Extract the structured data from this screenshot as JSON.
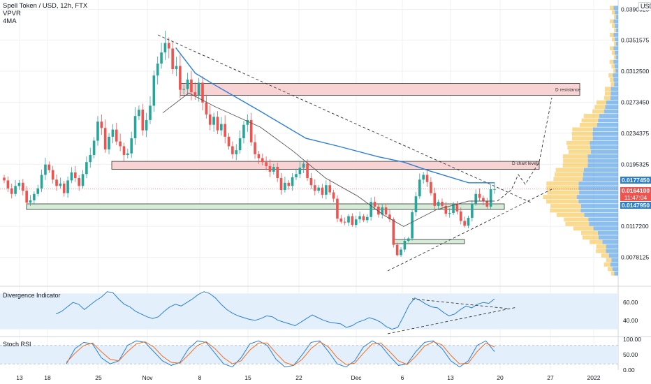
{
  "header": {
    "title": "Spell Token / USD, 12h, FTX",
    "indicator1": "VPVR",
    "indicator2": "4MA",
    "currency_button": "USD"
  },
  "colors": {
    "bull": "#26a69a",
    "bear": "#ef5350",
    "ma_fast": "#2a7fd4",
    "ma_slow": "#555555",
    "ma_mid": "#9e9e9e",
    "zone_fill": "#f7d3d3",
    "support_fill": "#d6ecd8",
    "vp_up": "#f6c142",
    "vp_down": "#2d8ae0",
    "rsi_line": "#2a7fd4",
    "stoch_k": "#2a7fd4",
    "stoch_d": "#f06c1f",
    "price_tag_red": "#ef5350",
    "price_tag_blue": "#2a7fd4"
  },
  "price_tags": {
    "ma_value": "0.0177450",
    "last_price": "0.0164100",
    "countdown": "11:47:04",
    "support_value": "0.0147950"
  },
  "annotations": {
    "resistance_label": "D resistance",
    "chart_levels_label": "D chart levels"
  },
  "panes": {
    "divergence_title": "Divergence Indicator",
    "stoch_title": "Stoch RSI"
  },
  "chart_data": [
    {
      "type": "candlestick",
      "title": "Spell Token / USD, 12h, FTX",
      "y_axis": {
        "ticks": [
          "0.0390025",
          "0.0351575",
          "0.0312500",
          "0.0273450",
          "0.0234375",
          "0.0195325",
          "0.0117200",
          "0.0078125"
        ],
        "range": [
          0.0055,
          0.0395
        ]
      },
      "x_axis": {
        "ticks": [
          "13",
          "18",
          "25",
          "Nov",
          "8",
          "15",
          "22",
          "Dec",
          "6",
          "13",
          "20",
          "27",
          "2022"
        ]
      },
      "levels": {
        "ma_value": 0.017745,
        "last_price": 0.01641,
        "support": 0.014795,
        "resistance_zone": [
          0.0282,
          0.0297
        ],
        "chart_levels_zone": [
          0.0189,
          0.0199
        ]
      },
      "candles_close": [
        0.0175,
        0.0165,
        0.0158,
        0.0168,
        0.0172,
        0.0162,
        0.0147,
        0.015,
        0.0158,
        0.0165,
        0.0182,
        0.0195,
        0.0188,
        0.0176,
        0.0168,
        0.0171,
        0.0159,
        0.0175,
        0.0185,
        0.0178,
        0.0168,
        0.0183,
        0.0198,
        0.0207,
        0.0225,
        0.0249,
        0.0241,
        0.0214,
        0.023,
        0.0239,
        0.0224,
        0.0218,
        0.0207,
        0.0209,
        0.0228,
        0.0256,
        0.0264,
        0.0238,
        0.0251,
        0.0269,
        0.0307,
        0.0322,
        0.0336,
        0.0348,
        0.0341,
        0.0315,
        0.0319,
        0.0289,
        0.029,
        0.0302,
        0.0286,
        0.0282,
        0.0298,
        0.0273,
        0.0258,
        0.0245,
        0.0255,
        0.0238,
        0.0246,
        0.023,
        0.0218,
        0.0208,
        0.0213,
        0.0228,
        0.0245,
        0.0251,
        0.0223,
        0.0208,
        0.0203,
        0.0198,
        0.0193,
        0.0186,
        0.0192,
        0.0178,
        0.0163,
        0.0172,
        0.0168,
        0.0179,
        0.0183,
        0.0191,
        0.0196,
        0.0178,
        0.0169,
        0.0162,
        0.0166,
        0.0157,
        0.0169,
        0.016,
        0.0152,
        0.0127,
        0.0123,
        0.0122,
        0.013,
        0.0119,
        0.0126,
        0.013,
        0.0125,
        0.0129,
        0.0148,
        0.0142,
        0.0132,
        0.0141,
        0.0132,
        0.0126,
        0.0094,
        0.0081,
        0.0088,
        0.0099,
        0.0102,
        0.0135,
        0.0155,
        0.0176,
        0.0182,
        0.0173,
        0.0159,
        0.0143,
        0.0148,
        0.0143,
        0.0133,
        0.0134,
        0.0145,
        0.0136,
        0.0124,
        0.0118,
        0.0128,
        0.0146,
        0.0158,
        0.0153,
        0.0149,
        0.0142,
        0.0164,
        0.01641
      ],
      "fast_ma_points": [
        [
          0.27,
          0.0342
        ],
        [
          0.3,
          0.031
        ],
        [
          0.33,
          0.0295
        ],
        [
          0.4,
          0.0262
        ],
        [
          0.47,
          0.0228
        ],
        [
          0.52,
          0.0218
        ],
        [
          0.58,
          0.0205
        ],
        [
          0.62,
          0.0198
        ],
        [
          0.66,
          0.0187
        ],
        [
          0.72,
          0.0172
        ],
        [
          0.76,
          0.0172
        ]
      ],
      "slow_ma_points": [
        [
          0.25,
          0.026
        ],
        [
          0.29,
          0.0285
        ],
        [
          0.33,
          0.0268
        ],
        [
          0.4,
          0.0242
        ],
        [
          0.45,
          0.0212
        ],
        [
          0.5,
          0.0178
        ],
        [
          0.55,
          0.0155
        ],
        [
          0.59,
          0.0131
        ],
        [
          0.62,
          0.0117
        ],
        [
          0.67,
          0.0138
        ],
        [
          0.72,
          0.0149
        ],
        [
          0.76,
          0.0149
        ]
      ],
      "volume_profile_levels": 60
    },
    {
      "type": "line",
      "title": "Divergence Indicator",
      "y_axis": {
        "ticks": [
          "60.00",
          "40.00"
        ],
        "range": [
          25,
          75
        ]
      },
      "series": [
        {
          "values": [
            47,
            50,
            55,
            60,
            58,
            52,
            57,
            62,
            66,
            72,
            71,
            64,
            58,
            55,
            50,
            47,
            44,
            42,
            44,
            50,
            55,
            58,
            56,
            60,
            64,
            69,
            72,
            70,
            65,
            58,
            52,
            48,
            45,
            43,
            41,
            40,
            42,
            45,
            44,
            40,
            38,
            36,
            34,
            38,
            42,
            46,
            43,
            40,
            38,
            37,
            36,
            32,
            34,
            38,
            40,
            43,
            41,
            38,
            33,
            30,
            32,
            44,
            57,
            65,
            62,
            58,
            55,
            54,
            49,
            45,
            47,
            52,
            56,
            54,
            58,
            60,
            59,
            64
          ]
        }
      ]
    },
    {
      "type": "line",
      "title": "Stoch RSI",
      "y_axis": {
        "ticks": [
          "100.00",
          "50.00",
          "0.00"
        ],
        "range": [
          0,
          100
        ]
      },
      "series": [
        {
          "values": [
            20,
            70,
            90,
            85,
            40,
            20,
            30,
            80,
            95,
            90,
            60,
            30,
            15,
            25,
            70,
            95,
            90,
            55,
            20,
            10,
            40,
            85,
            95,
            80,
            35,
            10,
            15,
            50,
            90,
            95,
            60,
            20,
            10,
            30,
            75,
            95,
            80,
            45,
            15,
            20,
            60,
            90,
            95,
            70,
            30,
            10,
            30,
            80,
            95,
            60
          ]
        },
        {
          "values": [
            25,
            55,
            80,
            88,
            60,
            35,
            30,
            60,
            85,
            92,
            75,
            45,
            25,
            22,
            50,
            80,
            92,
            70,
            40,
            20,
            30,
            65,
            88,
            88,
            55,
            25,
            15,
            35,
            70,
            92,
            75,
            40,
            18,
            22,
            55,
            85,
            88,
            60,
            30,
            18,
            45,
            78,
            92,
            82,
            48,
            20,
            22,
            60,
            88,
            75
          ]
        }
      ]
    }
  ]
}
